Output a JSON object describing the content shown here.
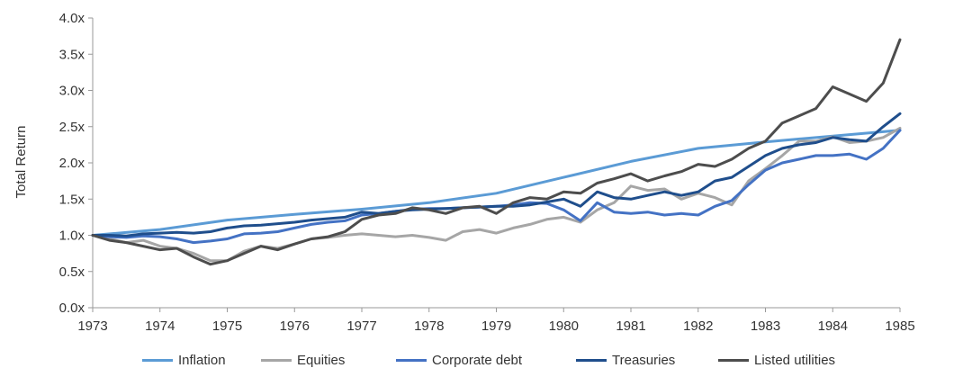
{
  "chart_data": {
    "type": "line",
    "ylabel": "Total Return",
    "xlabel": "",
    "x_ticks": [
      "1973",
      "1974",
      "1975",
      "1976",
      "1977",
      "1978",
      "1979",
      "1980",
      "1981",
      "1982",
      "1983",
      "1984",
      "1985"
    ],
    "y_ticks": [
      "0.0x",
      "0.5x",
      "1.0x",
      "1.5x",
      "2.0x",
      "2.5x",
      "3.0x",
      "3.5x",
      "4.0x"
    ],
    "xlim": [
      1973,
      1985
    ],
    "ylim": [
      0,
      4
    ],
    "grid": false,
    "legend_position": "bottom",
    "series": [
      {
        "name": "Inflation",
        "color": "#5b9bd5",
        "points": [
          [
            1973,
            1.0
          ],
          [
            1974,
            1.08
          ],
          [
            1975,
            1.21
          ],
          [
            1976,
            1.29
          ],
          [
            1977,
            1.36
          ],
          [
            1978,
            1.45
          ],
          [
            1979,
            1.58
          ],
          [
            1980,
            1.8
          ],
          [
            1981,
            2.02
          ],
          [
            1982,
            2.2
          ],
          [
            1983,
            2.29
          ],
          [
            1984,
            2.37
          ],
          [
            1985,
            2.45
          ]
        ]
      },
      {
        "name": "Equities",
        "color": "#a6a6a6",
        "points": [
          [
            1973,
            1.0
          ],
          [
            1973.25,
            0.95
          ],
          [
            1973.5,
            0.9
          ],
          [
            1973.75,
            0.93
          ],
          [
            1974,
            0.85
          ],
          [
            1974.25,
            0.82
          ],
          [
            1974.5,
            0.75
          ],
          [
            1974.75,
            0.65
          ],
          [
            1975,
            0.65
          ],
          [
            1975.25,
            0.78
          ],
          [
            1975.5,
            0.85
          ],
          [
            1975.75,
            0.82
          ],
          [
            1976,
            0.88
          ],
          [
            1976.25,
            0.95
          ],
          [
            1976.5,
            0.97
          ],
          [
            1976.75,
            1.0
          ],
          [
            1977,
            1.02
          ],
          [
            1977.25,
            1.0
          ],
          [
            1977.5,
            0.98
          ],
          [
            1977.75,
            1.0
          ],
          [
            1978,
            0.97
          ],
          [
            1978.25,
            0.93
          ],
          [
            1978.5,
            1.05
          ],
          [
            1978.75,
            1.08
          ],
          [
            1979,
            1.03
          ],
          [
            1979.25,
            1.1
          ],
          [
            1979.5,
            1.15
          ],
          [
            1979.75,
            1.22
          ],
          [
            1980,
            1.25
          ],
          [
            1980.25,
            1.18
          ],
          [
            1980.5,
            1.35
          ],
          [
            1980.75,
            1.45
          ],
          [
            1981,
            1.68
          ],
          [
            1981.25,
            1.62
          ],
          [
            1981.5,
            1.64
          ],
          [
            1981.75,
            1.5
          ],
          [
            1982,
            1.58
          ],
          [
            1982.25,
            1.52
          ],
          [
            1982.5,
            1.42
          ],
          [
            1982.75,
            1.75
          ],
          [
            1983,
            1.92
          ],
          [
            1983.25,
            2.1
          ],
          [
            1983.5,
            2.3
          ],
          [
            1983.75,
            2.3
          ],
          [
            1984,
            2.36
          ],
          [
            1984.25,
            2.28
          ],
          [
            1984.5,
            2.3
          ],
          [
            1984.75,
            2.35
          ],
          [
            1985,
            2.48
          ]
        ]
      },
      {
        "name": "Corporate debt",
        "color": "#4472c4",
        "points": [
          [
            1973,
            1.0
          ],
          [
            1973.25,
            0.98
          ],
          [
            1973.5,
            0.97
          ],
          [
            1973.75,
            0.99
          ],
          [
            1974,
            0.98
          ],
          [
            1974.25,
            0.95
          ],
          [
            1974.5,
            0.9
          ],
          [
            1974.75,
            0.92
          ],
          [
            1975,
            0.95
          ],
          [
            1975.25,
            1.02
          ],
          [
            1975.5,
            1.03
          ],
          [
            1975.75,
            1.05
          ],
          [
            1976,
            1.1
          ],
          [
            1976.25,
            1.15
          ],
          [
            1976.5,
            1.18
          ],
          [
            1976.75,
            1.2
          ],
          [
            1977,
            1.28
          ],
          [
            1977.25,
            1.3
          ],
          [
            1977.5,
            1.33
          ],
          [
            1977.75,
            1.36
          ],
          [
            1978,
            1.37
          ],
          [
            1978.25,
            1.37
          ],
          [
            1978.5,
            1.38
          ],
          [
            1978.75,
            1.39
          ],
          [
            1979,
            1.4
          ],
          [
            1979.25,
            1.42
          ],
          [
            1979.5,
            1.45
          ],
          [
            1979.75,
            1.44
          ],
          [
            1980,
            1.35
          ],
          [
            1980.25,
            1.2
          ],
          [
            1980.5,
            1.45
          ],
          [
            1980.75,
            1.32
          ],
          [
            1981,
            1.3
          ],
          [
            1981.25,
            1.32
          ],
          [
            1981.5,
            1.28
          ],
          [
            1981.75,
            1.3
          ],
          [
            1982,
            1.28
          ],
          [
            1982.25,
            1.4
          ],
          [
            1982.5,
            1.48
          ],
          [
            1982.75,
            1.7
          ],
          [
            1983,
            1.9
          ],
          [
            1983.25,
            2.0
          ],
          [
            1983.5,
            2.05
          ],
          [
            1983.75,
            2.1
          ],
          [
            1984,
            2.1
          ],
          [
            1984.25,
            2.12
          ],
          [
            1984.5,
            2.05
          ],
          [
            1984.75,
            2.2
          ],
          [
            1985,
            2.45
          ]
        ]
      },
      {
        "name": "Treasuries",
        "color": "#1f4e8c",
        "points": [
          [
            1973,
            1.0
          ],
          [
            1973.25,
            1.0
          ],
          [
            1973.5,
            0.99
          ],
          [
            1973.75,
            1.02
          ],
          [
            1974,
            1.03
          ],
          [
            1974.25,
            1.04
          ],
          [
            1974.5,
            1.03
          ],
          [
            1974.75,
            1.05
          ],
          [
            1975,
            1.1
          ],
          [
            1975.25,
            1.13
          ],
          [
            1975.5,
            1.14
          ],
          [
            1975.75,
            1.16
          ],
          [
            1976,
            1.18
          ],
          [
            1976.25,
            1.21
          ],
          [
            1976.5,
            1.23
          ],
          [
            1976.75,
            1.25
          ],
          [
            1977,
            1.32
          ],
          [
            1977.25,
            1.3
          ],
          [
            1977.5,
            1.33
          ],
          [
            1977.75,
            1.35
          ],
          [
            1978,
            1.36
          ],
          [
            1978.25,
            1.37
          ],
          [
            1978.5,
            1.38
          ],
          [
            1978.75,
            1.39
          ],
          [
            1979,
            1.4
          ],
          [
            1979.25,
            1.4
          ],
          [
            1979.5,
            1.42
          ],
          [
            1979.75,
            1.46
          ],
          [
            1980,
            1.5
          ],
          [
            1980.25,
            1.4
          ],
          [
            1980.5,
            1.6
          ],
          [
            1980.75,
            1.52
          ],
          [
            1981,
            1.5
          ],
          [
            1981.25,
            1.55
          ],
          [
            1981.5,
            1.6
          ],
          [
            1981.75,
            1.55
          ],
          [
            1982,
            1.6
          ],
          [
            1982.25,
            1.75
          ],
          [
            1982.5,
            1.8
          ],
          [
            1982.75,
            1.95
          ],
          [
            1983,
            2.1
          ],
          [
            1983.25,
            2.2
          ],
          [
            1983.5,
            2.25
          ],
          [
            1983.75,
            2.28
          ],
          [
            1984,
            2.35
          ],
          [
            1984.25,
            2.32
          ],
          [
            1984.5,
            2.3
          ],
          [
            1984.75,
            2.5
          ],
          [
            1985,
            2.68
          ]
        ]
      },
      {
        "name": "Listed utilities",
        "color": "#4d4d4d",
        "points": [
          [
            1973,
            1.0
          ],
          [
            1973.25,
            0.93
          ],
          [
            1973.5,
            0.9
          ],
          [
            1973.75,
            0.85
          ],
          [
            1974,
            0.8
          ],
          [
            1974.25,
            0.82
          ],
          [
            1974.5,
            0.7
          ],
          [
            1974.75,
            0.6
          ],
          [
            1975,
            0.65
          ],
          [
            1975.25,
            0.75
          ],
          [
            1975.5,
            0.85
          ],
          [
            1975.75,
            0.8
          ],
          [
            1976,
            0.88
          ],
          [
            1976.25,
            0.95
          ],
          [
            1976.5,
            0.98
          ],
          [
            1976.75,
            1.05
          ],
          [
            1977,
            1.22
          ],
          [
            1977.25,
            1.28
          ],
          [
            1977.5,
            1.3
          ],
          [
            1977.75,
            1.38
          ],
          [
            1978,
            1.35
          ],
          [
            1978.25,
            1.3
          ],
          [
            1978.5,
            1.38
          ],
          [
            1978.75,
            1.4
          ],
          [
            1979,
            1.3
          ],
          [
            1979.25,
            1.45
          ],
          [
            1979.5,
            1.52
          ],
          [
            1979.75,
            1.5
          ],
          [
            1980,
            1.6
          ],
          [
            1980.25,
            1.58
          ],
          [
            1980.5,
            1.72
          ],
          [
            1980.75,
            1.78
          ],
          [
            1981,
            1.85
          ],
          [
            1981.25,
            1.75
          ],
          [
            1981.5,
            1.82
          ],
          [
            1981.75,
            1.88
          ],
          [
            1982,
            1.98
          ],
          [
            1982.25,
            1.95
          ],
          [
            1982.5,
            2.05
          ],
          [
            1982.75,
            2.2
          ],
          [
            1983,
            2.3
          ],
          [
            1983.25,
            2.55
          ],
          [
            1983.5,
            2.65
          ],
          [
            1983.75,
            2.75
          ],
          [
            1984,
            3.05
          ],
          [
            1984.25,
            2.95
          ],
          [
            1984.5,
            2.85
          ],
          [
            1984.75,
            3.1
          ],
          [
            1985,
            3.7
          ]
        ]
      }
    ]
  }
}
